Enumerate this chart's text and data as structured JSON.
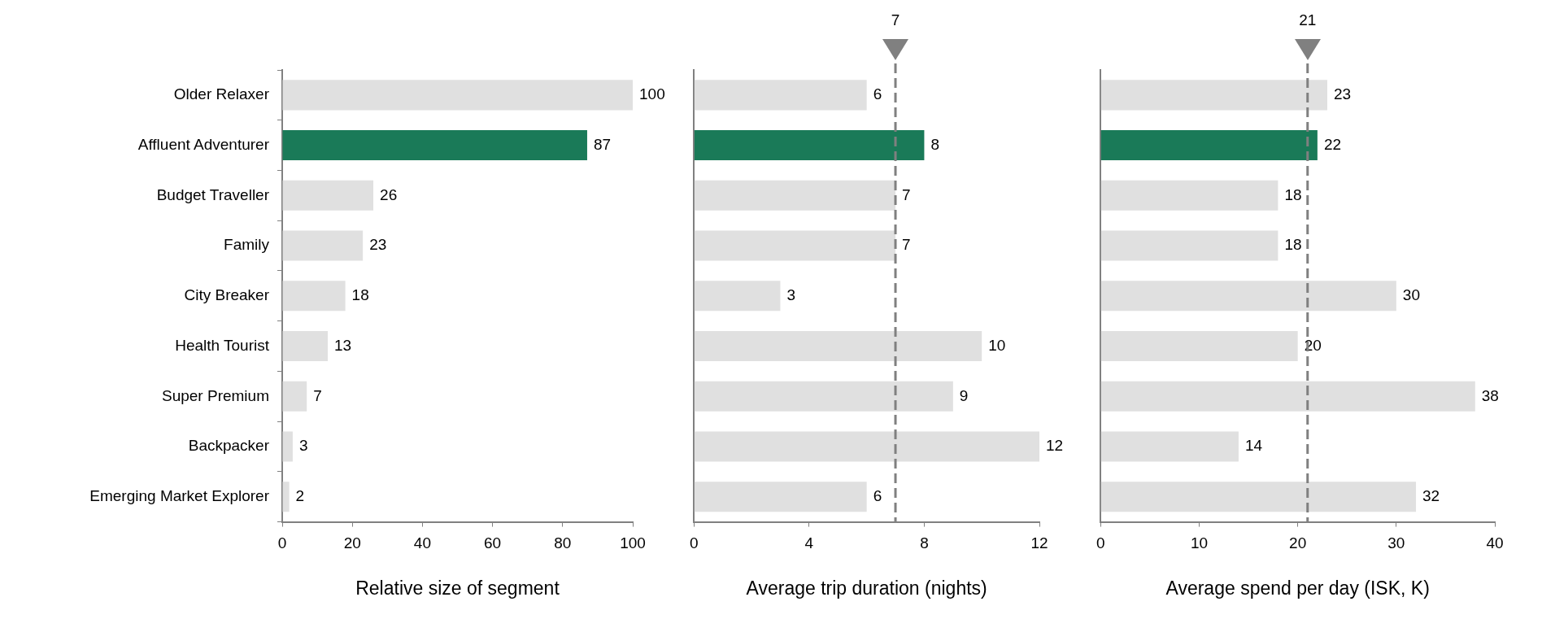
{
  "chart_data": [
    {
      "type": "bar",
      "orientation": "horizontal",
      "xlabel": "Relative size of segment",
      "categories": [
        "Older Relaxer",
        "Affluent Adventurer",
        "Budget Traveller",
        "Family",
        "City Breaker",
        "Health Tourist",
        "Super Premium",
        "Backpacker",
        "Emerging Market Explorer"
      ],
      "values": [
        100,
        87,
        26,
        23,
        18,
        13,
        7,
        3,
        2
      ],
      "data_labels": true,
      "colors": [
        "#e0e0e0",
        "#1a7a58",
        "#e0e0e0",
        "#e0e0e0",
        "#e0e0e0",
        "#e0e0e0",
        "#e0e0e0",
        "#e0e0e0",
        "#e0e0e0"
      ],
      "xlim": [
        0,
        100
      ],
      "xticks": [
        0,
        20,
        40,
        60,
        80,
        100
      ]
    },
    {
      "type": "bar",
      "orientation": "horizontal",
      "xlabel": "Average trip duration (nights)",
      "categories": [
        null,
        null,
        null,
        null,
        null,
        null,
        null,
        null,
        null
      ],
      "values": [
        6,
        8,
        7,
        7,
        3,
        10,
        9,
        12,
        6
      ],
      "data_labels": true,
      "colors": [
        "#e0e0e0",
        "#1a7a58",
        "#e0e0e0",
        "#e0e0e0",
        "#e0e0e0",
        "#e0e0e0",
        "#e0e0e0",
        "#e0e0e0",
        "#e0e0e0"
      ],
      "xlim": [
        0,
        12
      ],
      "xticks": [
        0,
        4,
        8,
        12
      ],
      "tick_labels": "x",
      "ref_lines": [
        {
          "axis": "x",
          "value": 7,
          "label": "7",
          "color": "#808080",
          "line_style": "dashed"
        }
      ]
    },
    {
      "type": "bar",
      "orientation": "horizontal",
      "xlabel": "Average spend per day (ISK, K)",
      "categories": [
        null,
        null,
        null,
        null,
        null,
        null,
        null,
        null,
        null
      ],
      "values": [
        23,
        22,
        18,
        18,
        30,
        20,
        38,
        14,
        32
      ],
      "data_labels": true,
      "colors": [
        "#e0e0e0",
        "#1a7a58",
        "#e0e0e0",
        "#e0e0e0",
        "#e0e0e0",
        "#e0e0e0",
        "#e0e0e0",
        "#e0e0e0",
        "#e0e0e0"
      ],
      "xlim": [
        0,
        40
      ],
      "xticks": [
        0,
        10,
        20,
        30,
        40
      ],
      "tick_labels": "x",
      "ref_lines": [
        {
          "axis": "x",
          "value": 21,
          "label": "21",
          "color": "#808080",
          "line_style": "dashed"
        }
      ]
    }
  ]
}
